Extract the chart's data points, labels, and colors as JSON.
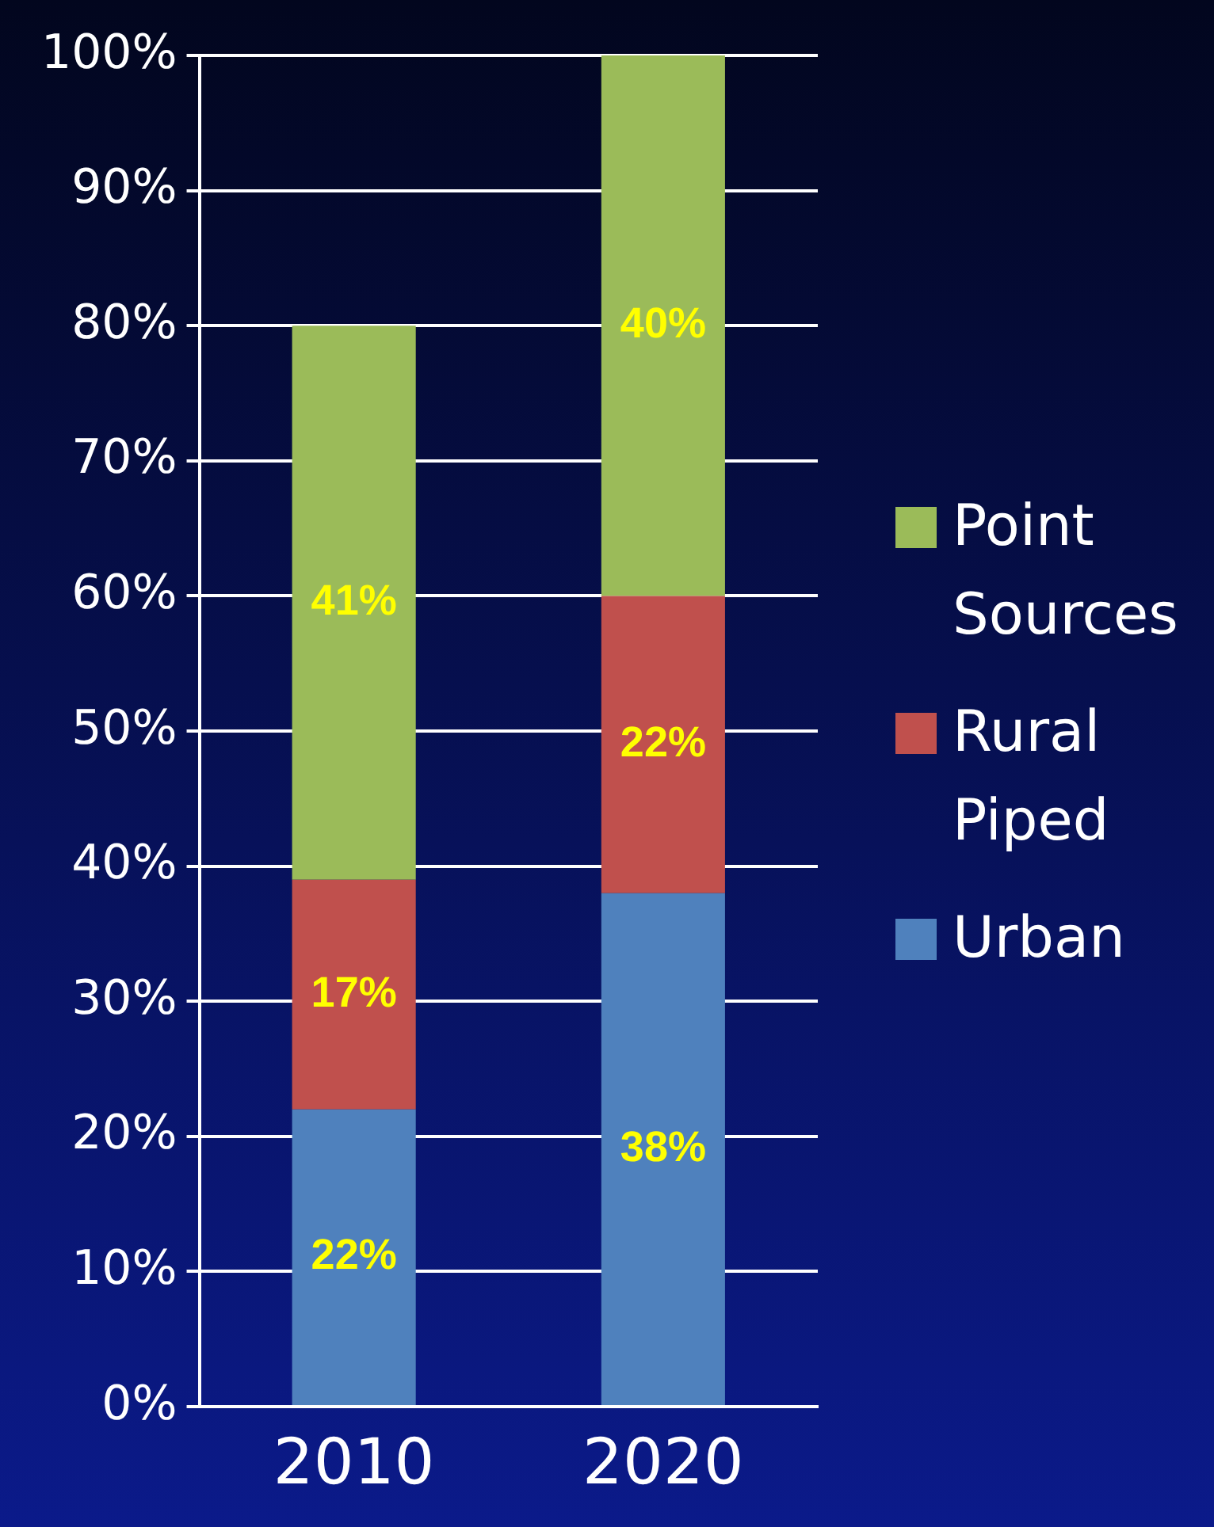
{
  "chart_data": {
    "type": "bar",
    "stacked": true,
    "categories": [
      "2010",
      "2020"
    ],
    "series": [
      {
        "name": "Urban",
        "color": "#4f81bd",
        "values": [
          22,
          38
        ],
        "value_labels": [
          "22%",
          "38%"
        ]
      },
      {
        "name": "Rural Piped",
        "color": "#c0504d",
        "values": [
          17,
          22
        ],
        "value_labels": [
          "17%",
          "22%"
        ]
      },
      {
        "name": "Point Sources",
        "color": "#9bbb59",
        "values": [
          41,
          40
        ],
        "value_labels": [
          "41%",
          "40%"
        ]
      }
    ],
    "ylim": [
      0,
      100
    ],
    "yticks": [
      {
        "value": 0,
        "label": "0%"
      },
      {
        "value": 10,
        "label": "10%"
      },
      {
        "value": 20,
        "label": "20%"
      },
      {
        "value": 30,
        "label": "30%"
      },
      {
        "value": 40,
        "label": "40%"
      },
      {
        "value": 50,
        "label": "50%"
      },
      {
        "value": 60,
        "label": "60%"
      },
      {
        "value": 70,
        "label": "70%"
      },
      {
        "value": 80,
        "label": "80%"
      },
      {
        "value": 90,
        "label": "90%"
      },
      {
        "value": 100,
        "label": "100%"
      }
    ],
    "grid": "y",
    "legend": "right"
  }
}
